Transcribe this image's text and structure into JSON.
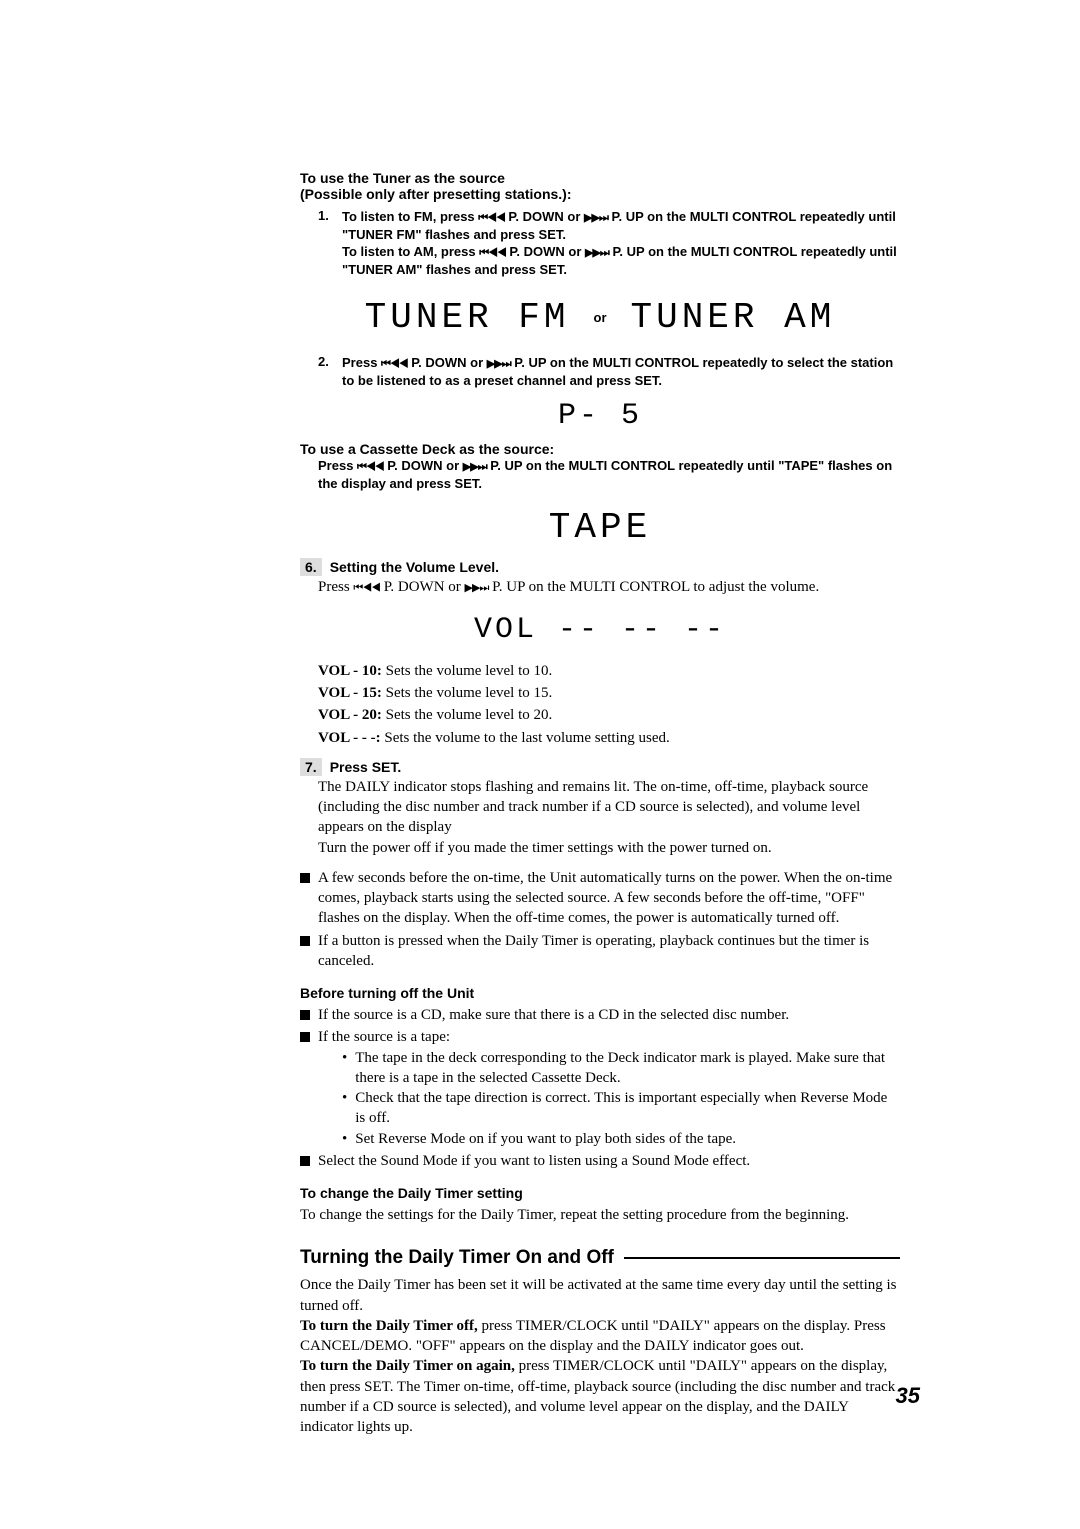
{
  "tuner_section": {
    "heading_line1": "To use the Tuner as the source",
    "heading_line2": "(Possible only after presetting stations.):",
    "step1": {
      "num": "1.",
      "line_a_pre": "To listen to FM, press ",
      "icon_pdown": "⏮◀◀",
      "mid_a": " P. DOWN or ",
      "icon_pup": "▶▶⏭",
      "line_a_post": " P. UP on the MULTI CONTROL repeatedly until \"TUNER FM\" flashes and press SET.",
      "line_b_pre": "To listen to AM, press ",
      "line_b_post": " P. UP on the MULTI CONTROL repeatedly until \"TUNER AM\" flashes and press SET."
    },
    "display": {
      "fm": "TUNER FM",
      "or": "or",
      "am": "TUNER AM"
    },
    "step2": {
      "num": "2.",
      "pre": "Press ",
      "post": " P. UP on the MULTI CONTROL repeatedly to select the station to be listened to as a preset channel and press SET."
    },
    "display2": "P- 5"
  },
  "cassette_section": {
    "heading": "To use a Cassette Deck as the source:",
    "body_pre": "Press ",
    "body_mid": " P. DOWN or ",
    "body_post": " P. UP on the MULTI CONTROL repeatedly until \"TAPE\" flashes on the display and press SET.",
    "display": "TAPE"
  },
  "step6": {
    "num": "6.",
    "title": "Setting the Volume Level.",
    "body_pre": "Press ",
    "body_mid": " P. DOWN or ",
    "body_post": " P. UP on the MULTI CONTROL to adjust the volume.",
    "display": "VOL -- -- --",
    "items": [
      {
        "k": "VOL - 10: ",
        "v": "Sets the volume level to 10."
      },
      {
        "k": "VOL - 15: ",
        "v": "Sets the volume level to 15."
      },
      {
        "k": "VOL - 20: ",
        "v": "Sets the volume level to 20."
      },
      {
        "k": "VOL - - -: ",
        "v": "Sets the volume to the last volume setting used."
      }
    ]
  },
  "step7": {
    "num": "7.",
    "title": "Press SET.",
    "p1": "The DAILY indicator stops flashing and remains lit. The on-time, off-time, playback source (including the disc number and track number if a CD source is selected), and volume level appears on the display",
    "p2": "Turn the power off if you made the timer settings with the power turned on."
  },
  "notes": {
    "n1": "A few seconds before the on-time, the Unit automatically turns on the power. When the on-time comes, playback starts using the selected source. A few seconds before the off-time, \"OFF\" flashes on the display. When the off-time comes, the power is automatically turned off.",
    "n2": "If a button is pressed when the Daily Timer is operating, playback continues but the timer is canceled."
  },
  "before_off": {
    "heading": "Before turning off the Unit",
    "b1": "If the source is a CD, make sure that there is a CD in the selected disc number.",
    "b2": "If the source is a tape:",
    "b2a": "The tape in the deck corresponding to the Deck indicator mark is played. Make sure that there is a tape in the selected Cassette Deck.",
    "b2b": "Check that the tape direction is correct. This is important especially when Reverse Mode is off.",
    "b2c": "Set Reverse Mode on if you want to play both sides of the tape.",
    "b3": "Select the Sound Mode if you want to listen using a Sound Mode effect."
  },
  "change_timer": {
    "heading": "To change the Daily Timer setting",
    "body": "To change the settings for the Daily Timer, repeat the setting procedure from the beginning."
  },
  "onoff": {
    "heading": "Turning the Daily Timer On and Off",
    "p1": "Once the Daily Timer has been set it will be activated at the same time every day until the setting is turned off.",
    "p2_bold": "To turn the Daily Timer off, ",
    "p2": "press TIMER/CLOCK until \"DAILY\" appears on the display. Press CANCEL/DEMO. \"OFF\" appears on the display and the DAILY indicator goes out.",
    "p3_bold": "To turn the Daily Timer on again, ",
    "p3": "press TIMER/CLOCK until \"DAILY\" appears on the display, then press SET. The Timer on-time, off-time, playback source (including the disc number and track number if a CD source is selected), and volume level appear on the display, and the DAILY indicator lights up."
  },
  "page_number": "35"
}
